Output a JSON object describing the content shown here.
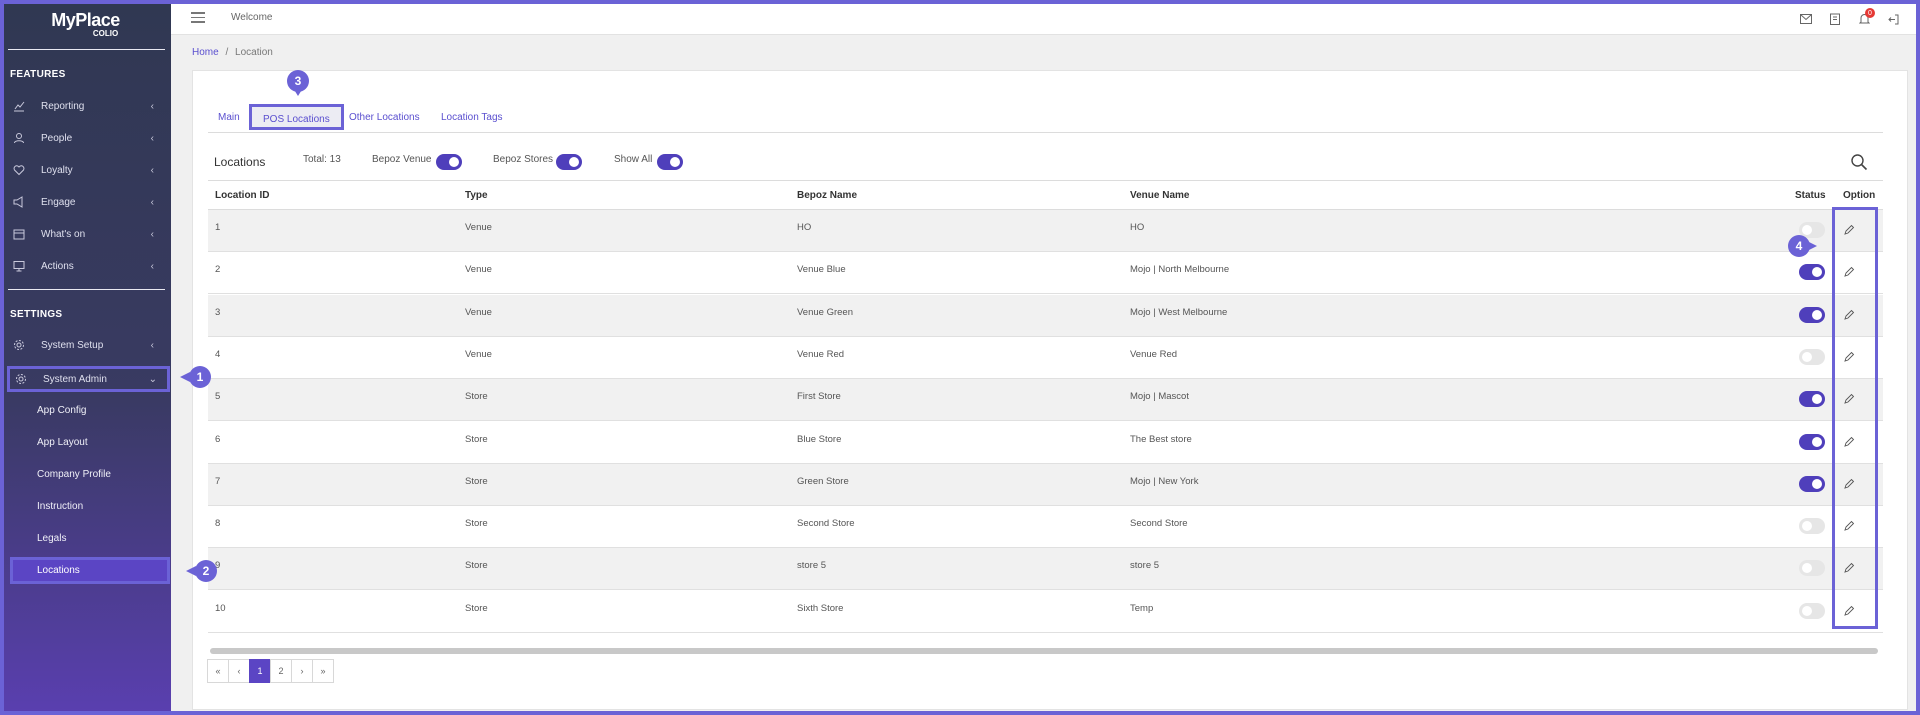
{
  "brand": {
    "name": "MyPlace",
    "sub": "COLIO"
  },
  "topbar": {
    "welcome": "Welcome",
    "notification_count": "0"
  },
  "breadcrumb": {
    "home": "Home",
    "separator": "/",
    "current": "Location"
  },
  "sidebar": {
    "features_label": "FEATURES",
    "features": [
      {
        "label": "Reporting",
        "icon": "chart-icon"
      },
      {
        "label": "People",
        "icon": "user-icon"
      },
      {
        "label": "Loyalty",
        "icon": "heart-icon"
      },
      {
        "label": "Engage",
        "icon": "megaphone-icon"
      },
      {
        "label": "What's on",
        "icon": "calendar-icon"
      },
      {
        "label": "Actions",
        "icon": "monitor-icon"
      }
    ],
    "settings_label": "SETTINGS",
    "settings": [
      {
        "label": "System Setup",
        "icon": "gear-icon"
      },
      {
        "label": "System Admin",
        "icon": "gear-icon"
      }
    ],
    "admin_sub": [
      "App Config",
      "App Layout",
      "Company Profile",
      "Instruction",
      "Legals",
      "Locations"
    ]
  },
  "tabs": [
    "Main",
    "POS Locations",
    "Other Locations",
    "Location Tags"
  ],
  "toolbar": {
    "title": "Locations",
    "total": "Total: 13",
    "bepoz_venue": "Bepoz Venue",
    "bepoz_stores": "Bepoz Stores",
    "show_all": "Show All"
  },
  "table": {
    "headers": {
      "id": "Location ID",
      "type": "Type",
      "bepoz": "Bepoz Name",
      "venue": "Venue Name",
      "status": "Status",
      "option": "Option"
    },
    "rows": [
      {
        "id": "1",
        "type": "Venue",
        "bepoz": "HO",
        "venue": "HO",
        "status": "off"
      },
      {
        "id": "2",
        "type": "Venue",
        "bepoz": "Venue Blue",
        "venue": "Mojo | North Melbourne",
        "status": "on"
      },
      {
        "id": "3",
        "type": "Venue",
        "bepoz": "Venue Green",
        "venue": "Mojo | West Melbourne",
        "status": "on"
      },
      {
        "id": "4",
        "type": "Venue",
        "bepoz": "Venue Red",
        "venue": "Venue Red",
        "status": "off"
      },
      {
        "id": "5",
        "type": "Store",
        "bepoz": "First Store",
        "venue": "Mojo | Mascot",
        "status": "on"
      },
      {
        "id": "6",
        "type": "Store",
        "bepoz": "Blue Store",
        "venue": "The Best store",
        "status": "on"
      },
      {
        "id": "7",
        "type": "Store",
        "bepoz": "Green Store",
        "venue": "Mojo | New York",
        "status": "on"
      },
      {
        "id": "8",
        "type": "Store",
        "bepoz": "Second Store",
        "venue": "Second Store",
        "status": "off"
      },
      {
        "id": "9",
        "type": "Store",
        "bepoz": "store 5",
        "venue": "store 5",
        "status": "off"
      },
      {
        "id": "10",
        "type": "Store",
        "bepoz": "Sixth Store",
        "venue": "Temp",
        "status": "off"
      }
    ]
  },
  "pagination": [
    "«",
    "‹",
    "1",
    "2",
    "›",
    "»"
  ],
  "callouts": [
    "1",
    "2",
    "3",
    "4"
  ],
  "colors": {
    "accent": "#5b45c4",
    "highlight": "#6b62d6"
  }
}
